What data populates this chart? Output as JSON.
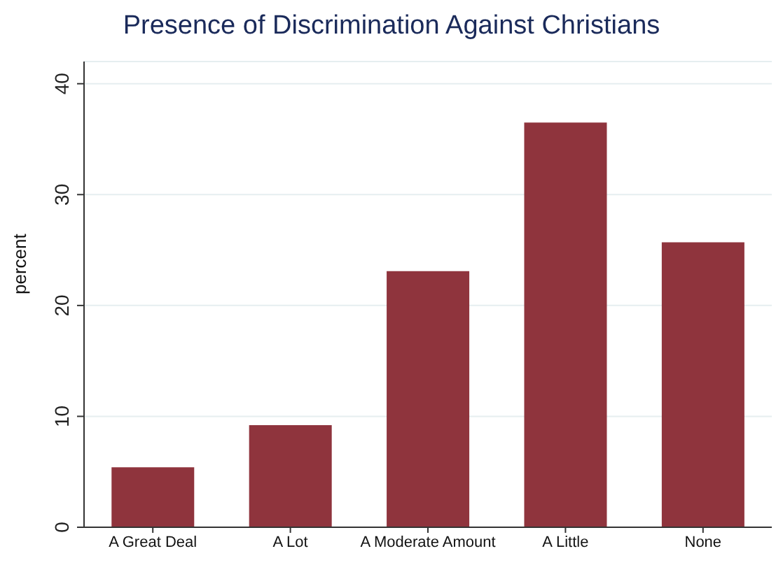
{
  "chart_data": {
    "type": "bar",
    "title": "Presence of Discrimination Against Christians",
    "ylabel": "percent",
    "categories": [
      "A Great Deal",
      "A Lot",
      "A Moderate Amount",
      "A Little",
      "None"
    ],
    "values": [
      5.4,
      9.2,
      23.1,
      36.5,
      25.7
    ],
    "color": "#8f343d",
    "ylim": [
      0,
      42
    ],
    "yticks": [
      0,
      10,
      20,
      30,
      40
    ],
    "grid": "y"
  }
}
